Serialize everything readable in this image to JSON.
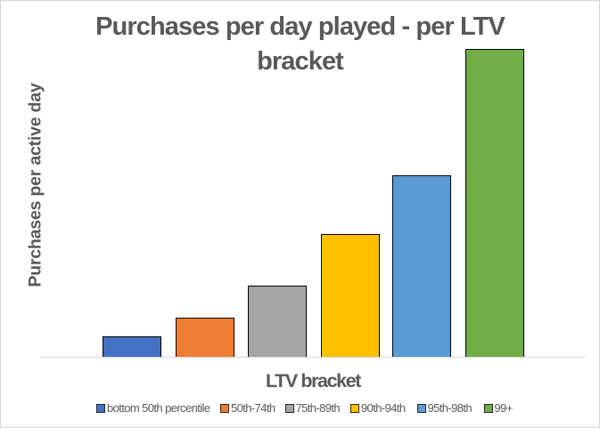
{
  "chart_data": {
    "type": "bar",
    "title": "Purchases per day played - per LTV bracket",
    "title_lines": [
      "Purchases per day played - per LTV",
      "bracket"
    ],
    "xlabel": "LTV bracket",
    "ylabel": "Purchases per active day",
    "categories": [
      "LTV bracket"
    ],
    "series": [
      {
        "name": "bottom 50th percentile",
        "color": "#4472c4",
        "value": 0.066
      },
      {
        "name": "50th-74th",
        "color": "#ed7d31",
        "value": 0.127
      },
      {
        "name": "75th-89th",
        "color": "#a5a5a5",
        "value": 0.231
      },
      {
        "name": "90th-94th",
        "color": "#ffc000",
        "value": 0.4
      },
      {
        "name": "95th-98th",
        "color": "#5b9bd5",
        "value": 0.59
      },
      {
        "name": "99+",
        "color": "#70ad47",
        "value": 1.0
      }
    ],
    "ylim": [
      0,
      1
    ],
    "grid": false,
    "y_tick_labels_visible": false,
    "legend_position": "bottom",
    "bar_outline_color": "#000000",
    "axis_line_color": "#d9d9d9",
    "text_color": "#595959"
  }
}
